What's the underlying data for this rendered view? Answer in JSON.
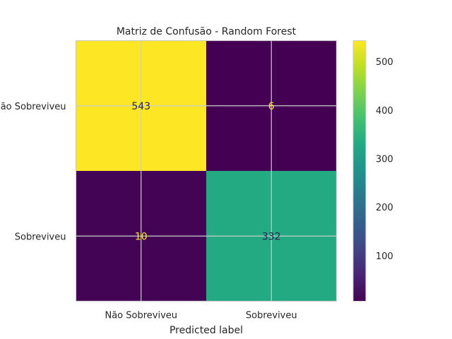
{
  "chart_data": {
    "type": "heatmap",
    "title": "Matriz de Confusão - Random Forest",
    "xlabel": "Predicted label",
    "ylabel": "",
    "x_categories": [
      "Não Sobreviveu",
      "Sobreviveu"
    ],
    "y_categories": [
      "Não Sobreviveu",
      "Sobreviveu"
    ],
    "values": [
      [
        543,
        6
      ],
      [
        10,
        332
      ]
    ],
    "colormap": "viridis",
    "colorbar": {
      "min": 6,
      "max": 543,
      "ticks": [
        100,
        200,
        300,
        400,
        500
      ]
    },
    "grid": true
  }
}
